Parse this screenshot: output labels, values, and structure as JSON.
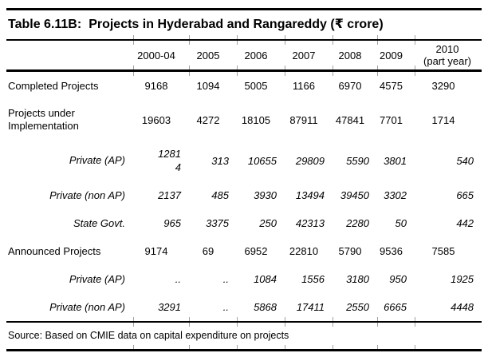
{
  "title": {
    "label": "Table 6.11B:",
    "text": "Projects in Hyderabad and Rangareddy (₹ crore)"
  },
  "table": {
    "columns": [
      "",
      "2000-04",
      "2005",
      "2006",
      "2007",
      "2008",
      "2009",
      "2010\n(part year)"
    ],
    "rows": [
      {
        "label": "Completed Projects",
        "style": "regular",
        "values": [
          "9168",
          "1094",
          "5005",
          "1166",
          "6970",
          "4575",
          "3290"
        ]
      },
      {
        "label": "Projects under Implementation",
        "style": "regular",
        "values": [
          "19603",
          "4272",
          "18105",
          "87911",
          "47841",
          "7701",
          "1714"
        ]
      },
      {
        "label": "Private (AP)",
        "style": "italic",
        "values": [
          "1281\n4",
          "313",
          "10655",
          "29809",
          "5590",
          "3801",
          "540"
        ]
      },
      {
        "label": "Private (non AP)",
        "style": "italic",
        "values": [
          "2137",
          "485",
          "3930",
          "13494",
          "39450",
          "3302",
          "665"
        ]
      },
      {
        "label": "State Govt.",
        "style": "italic",
        "values": [
          "965",
          "3375",
          "250",
          "42313",
          "2280",
          "50",
          "442"
        ]
      },
      {
        "label": "Announced Projects",
        "style": "regular",
        "values": [
          "9174",
          "69",
          "6952",
          "22810",
          "5790",
          "9536",
          "7585"
        ]
      },
      {
        "label": "Private (AP)",
        "style": "italic",
        "values": [
          "..",
          "..",
          "1084",
          "1556",
          "3180",
          "950",
          "1925"
        ]
      },
      {
        "label": "Private (non AP)",
        "style": "italic",
        "values": [
          "3291",
          "..",
          "5868",
          "17411",
          "2550",
          "6665",
          "4448"
        ]
      }
    ]
  },
  "source": "Source: Based on CMIE data on capital expenditure on projects"
}
